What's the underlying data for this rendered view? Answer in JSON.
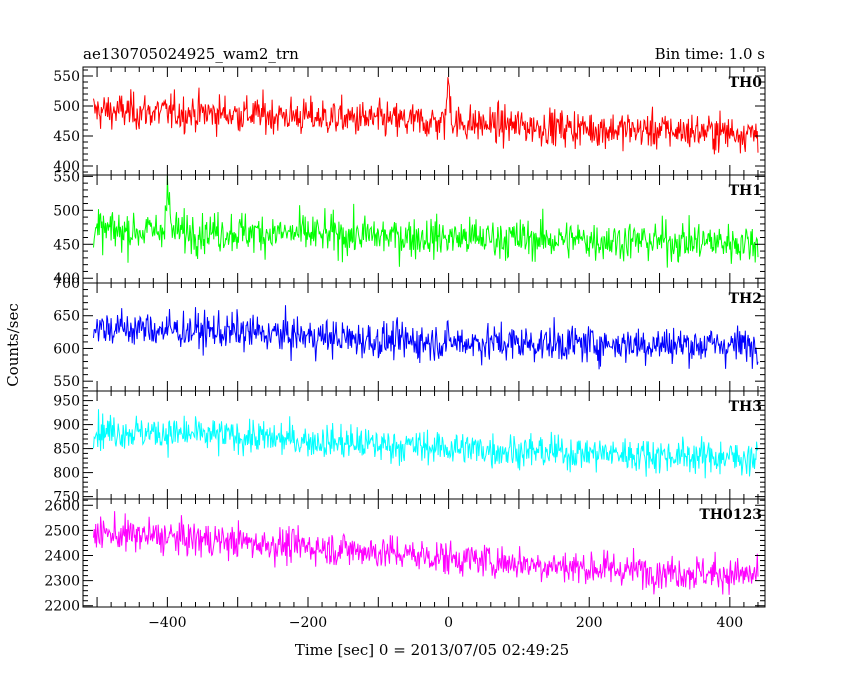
{
  "chart_data": {
    "type": "line",
    "title": "ae130705024925_wam2_trn",
    "subtitle": "Bin time: 1.0 s",
    "xlabel": "Time [sec] 0 = 2013/07/05 02:49:25",
    "ylabel": "Counts/sec",
    "xlim": [
      -520,
      450
    ],
    "x_ticks": [
      -400,
      -200,
      0,
      200,
      400
    ],
    "x_data_range": [
      -505,
      440
    ],
    "bin_time_s": 1.0,
    "grid": false,
    "panels": [
      {
        "name": "TH0",
        "color": "#ff0000",
        "ylim": [
          385,
          565
        ],
        "y_ticks": [
          400,
          450,
          500,
          550
        ],
        "trend": [
          [
            -505,
            492
          ],
          [
            -300,
            487
          ],
          [
            -100,
            477
          ],
          [
            0,
            472
          ],
          [
            200,
            462
          ],
          [
            440,
            455
          ]
        ],
        "noise": 26,
        "features": [
          {
            "x": 0,
            "peak": 555
          }
        ]
      },
      {
        "name": "TH1",
        "color": "#00ff00",
        "ylim": [
          393,
          552
        ],
        "y_ticks": [
          400,
          450,
          500,
          550
        ],
        "trend": [
          [
            -505,
            470
          ],
          [
            -300,
            468
          ],
          [
            -100,
            462
          ],
          [
            100,
            458
          ],
          [
            440,
            452
          ]
        ],
        "noise": 25,
        "features": [
          {
            "x": -400,
            "peak": 553
          }
        ]
      },
      {
        "name": "TH2",
        "color": "#0000ff",
        "ylim": [
          535,
          700
        ],
        "y_ticks": [
          550,
          600,
          650,
          700
        ],
        "trend": [
          [
            -505,
            632
          ],
          [
            -300,
            625
          ],
          [
            -100,
            612
          ],
          [
            100,
            608
          ],
          [
            440,
            605
          ]
        ],
        "noise": 24,
        "features": []
      },
      {
        "name": "TH3",
        "color": "#00ffff",
        "ylim": [
          745,
          970
        ],
        "y_ticks": [
          750,
          800,
          850,
          900,
          950
        ],
        "trend": [
          [
            -505,
            888
          ],
          [
            -300,
            875
          ],
          [
            -100,
            858
          ],
          [
            100,
            845
          ],
          [
            440,
            830
          ]
        ],
        "noise": 30,
        "features": []
      },
      {
        "name": "TH0123",
        "color": "#ff00ff",
        "ylim": [
          2195,
          2625
        ],
        "y_ticks": [
          2200,
          2300,
          2400,
          2500,
          2600
        ],
        "trend": [
          [
            -505,
            2490
          ],
          [
            -300,
            2455
          ],
          [
            -100,
            2415
          ],
          [
            0,
            2390
          ],
          [
            200,
            2350
          ],
          [
            440,
            2320
          ]
        ],
        "noise": 58,
        "features": []
      }
    ]
  }
}
